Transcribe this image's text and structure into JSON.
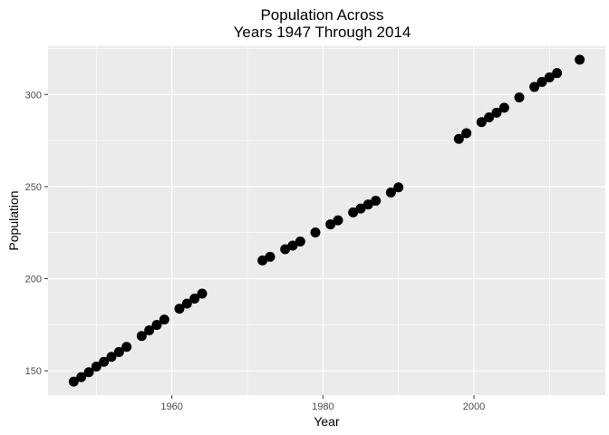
{
  "chart_data": {
    "type": "scatter",
    "title_lines": [
      "Population Across",
      "Years 1947 Through 2014"
    ],
    "xlabel": "Year",
    "ylabel": "Population",
    "xlim": [
      1943.6,
      2017.4
    ],
    "ylim": [
      136.8,
      326.2
    ],
    "x_ticks": [
      1960,
      1980,
      2000
    ],
    "x_minor_ticks": [
      1950,
      1970,
      1990,
      2010
    ],
    "y_ticks": [
      150,
      200,
      250,
      300
    ],
    "y_minor_ticks": [
      175,
      225,
      275,
      325
    ],
    "grid": true,
    "colors": {
      "panel": "#ebebeb",
      "grid": "#ffffff",
      "point": "#000000"
    },
    "points": [
      {
        "x": 1947,
        "y": 144.1
      },
      {
        "x": 1948,
        "y": 146.6
      },
      {
        "x": 1949,
        "y": 149.2
      },
      {
        "x": 1950,
        "y": 152.3
      },
      {
        "x": 1951,
        "y": 154.9
      },
      {
        "x": 1952,
        "y": 157.6
      },
      {
        "x": 1953,
        "y": 160.2
      },
      {
        "x": 1954,
        "y": 163.0
      },
      {
        "x": 1956,
        "y": 168.9
      },
      {
        "x": 1957,
        "y": 172.0
      },
      {
        "x": 1958,
        "y": 174.9
      },
      {
        "x": 1959,
        "y": 177.8
      },
      {
        "x": 1961,
        "y": 183.7
      },
      {
        "x": 1962,
        "y": 186.5
      },
      {
        "x": 1963,
        "y": 189.2
      },
      {
        "x": 1964,
        "y": 191.9
      },
      {
        "x": 1972,
        "y": 209.9
      },
      {
        "x": 1973,
        "y": 211.9
      },
      {
        "x": 1975,
        "y": 216.0
      },
      {
        "x": 1976,
        "y": 218.0
      },
      {
        "x": 1977,
        "y": 220.2
      },
      {
        "x": 1979,
        "y": 225.1
      },
      {
        "x": 1981,
        "y": 229.5
      },
      {
        "x": 1982,
        "y": 231.7
      },
      {
        "x": 1984,
        "y": 236.0
      },
      {
        "x": 1985,
        "y": 238.1
      },
      {
        "x": 1986,
        "y": 240.3
      },
      {
        "x": 1987,
        "y": 242.3
      },
      {
        "x": 1989,
        "y": 246.8
      },
      {
        "x": 1990,
        "y": 249.6
      },
      {
        "x": 1998,
        "y": 275.9
      },
      {
        "x": 1999,
        "y": 279.0
      },
      {
        "x": 2001,
        "y": 285.0
      },
      {
        "x": 2002,
        "y": 287.6
      },
      {
        "x": 2003,
        "y": 290.1
      },
      {
        "x": 2004,
        "y": 292.8
      },
      {
        "x": 2006,
        "y": 298.4
      },
      {
        "x": 2008,
        "y": 304.1
      },
      {
        "x": 2009,
        "y": 306.8
      },
      {
        "x": 2010,
        "y": 309.3
      },
      {
        "x": 2011,
        "y": 311.6
      },
      {
        "x": 2014,
        "y": 318.9
      }
    ]
  }
}
